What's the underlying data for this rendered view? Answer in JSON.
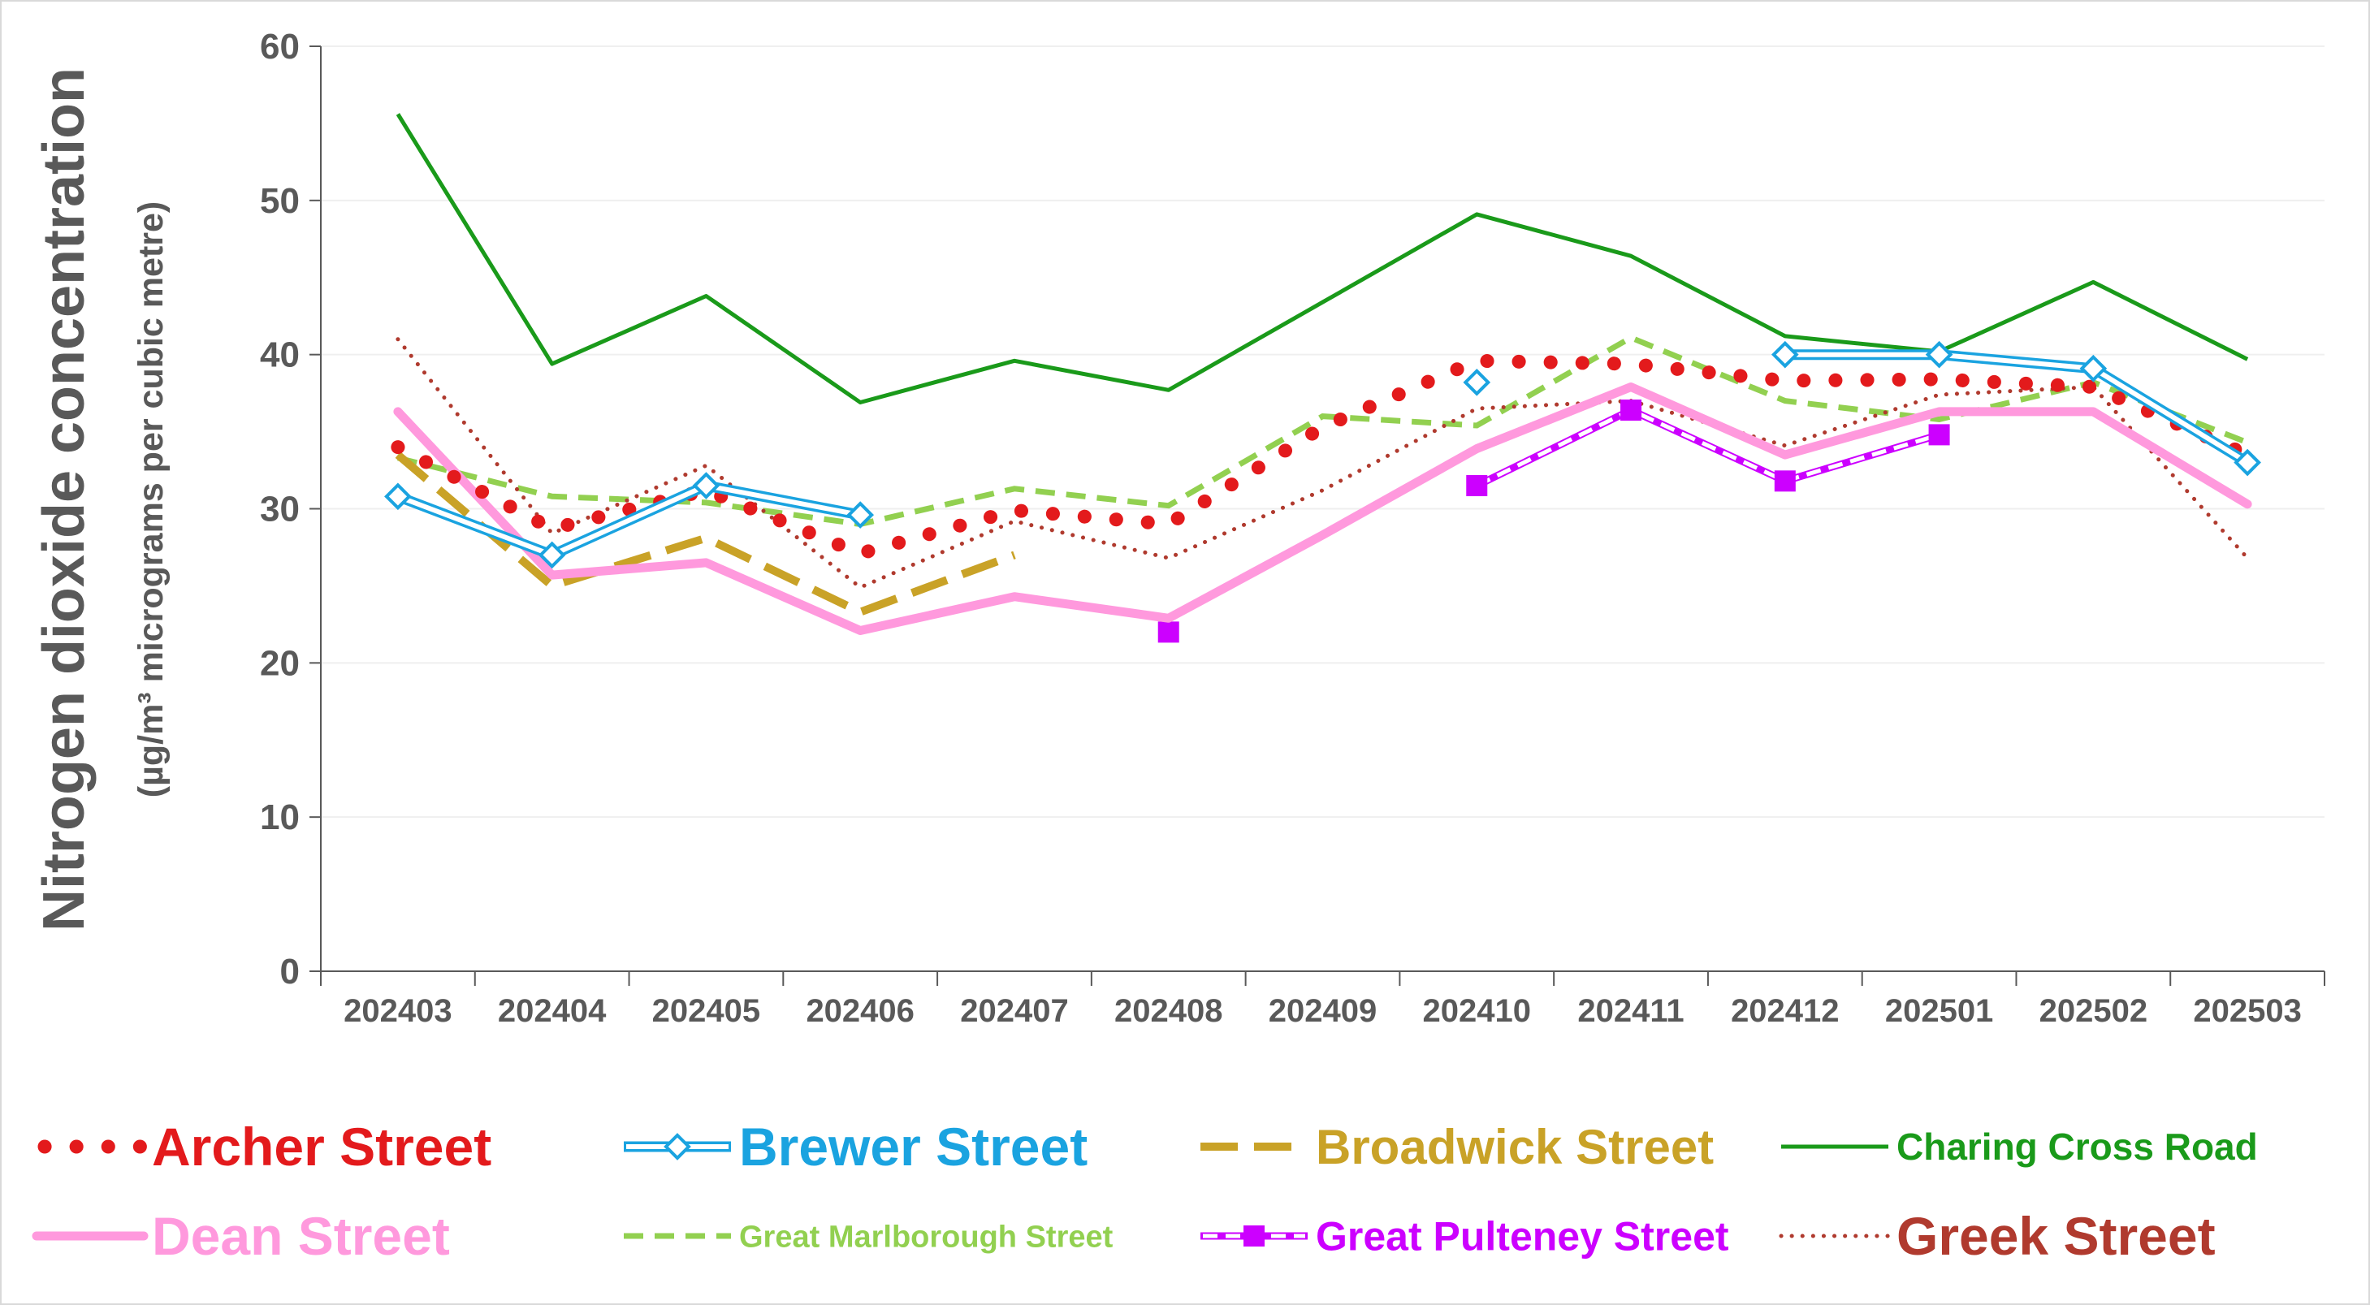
{
  "chart_data": {
    "type": "line",
    "title": "",
    "ylabel": "Nitrogen dioxide concentration",
    "ylabel_sub": "(µg/m³ micrograms per cubic metre)",
    "xlabel": "",
    "ylim": [
      0,
      60
    ],
    "yticks": [
      0,
      10,
      20,
      30,
      40,
      50,
      60
    ],
    "grid": "horizontal",
    "legend_position": "bottom",
    "categories": [
      "202403",
      "202404",
      "202405",
      "202406",
      "202407",
      "202408",
      "202409",
      "202410",
      "202411",
      "202412",
      "202501",
      "202502",
      "202503"
    ],
    "series": [
      {
        "name": "Archer Street",
        "color": "#e31a1c",
        "style": "round-dot",
        "values": [
          34,
          28.7,
          31.2,
          27.1,
          29.9,
          29,
          35.3,
          39.6,
          39.4,
          38.3,
          38.4,
          37.9,
          33.5
        ]
      },
      {
        "name": "Brewer Street",
        "color": "#1aa3e0",
        "style": "double-diamond",
        "values": [
          30.8,
          27,
          31.5,
          29.6,
          null,
          null,
          null,
          38.2,
          null,
          40,
          40,
          39.1,
          33
        ]
      },
      {
        "name": "Broadwick Street",
        "color": "#c9a227",
        "style": "long-dash",
        "values": [
          33.5,
          25,
          28.1,
          23.3,
          27,
          null,
          null,
          null,
          null,
          null,
          null,
          null,
          null
        ]
      },
      {
        "name": "Charing Cross Road",
        "color": "#1a9a1a",
        "style": "solid-thin",
        "values": [
          55.6,
          39.4,
          43.8,
          36.9,
          39.6,
          37.7,
          43.4,
          49.1,
          46.4,
          41.2,
          40.2,
          44.7,
          39.7
        ]
      },
      {
        "name": "Dean Street",
        "color": "#ff99dd",
        "style": "solid-thick",
        "values": [
          36.3,
          25.7,
          26.5,
          22.1,
          24.3,
          22.9,
          28.3,
          33.9,
          37.9,
          33.5,
          36.3,
          36.3,
          30.3
        ]
      },
      {
        "name": "Great Marlborough Street",
        "color": "#92d050",
        "style": "dash",
        "values": [
          33.3,
          30.8,
          30.4,
          29,
          31.3,
          30.2,
          36,
          35.4,
          41.1,
          37,
          35.8,
          38.2,
          34.3
        ]
      },
      {
        "name": "Great Pulteney Street",
        "color": "#cc00ff",
        "style": "square-dash",
        "values": [
          null,
          null,
          null,
          null,
          null,
          22,
          null,
          31.5,
          36.4,
          31.8,
          34.8,
          null,
          null
        ]
      },
      {
        "name": "Greek Street",
        "color": "#b03a2e",
        "style": "dot",
        "values": [
          41,
          28.4,
          32.8,
          24.9,
          29.2,
          26.8,
          31.2,
          36.5,
          37,
          34.1,
          37.4,
          37.9,
          26.8
        ]
      }
    ]
  }
}
